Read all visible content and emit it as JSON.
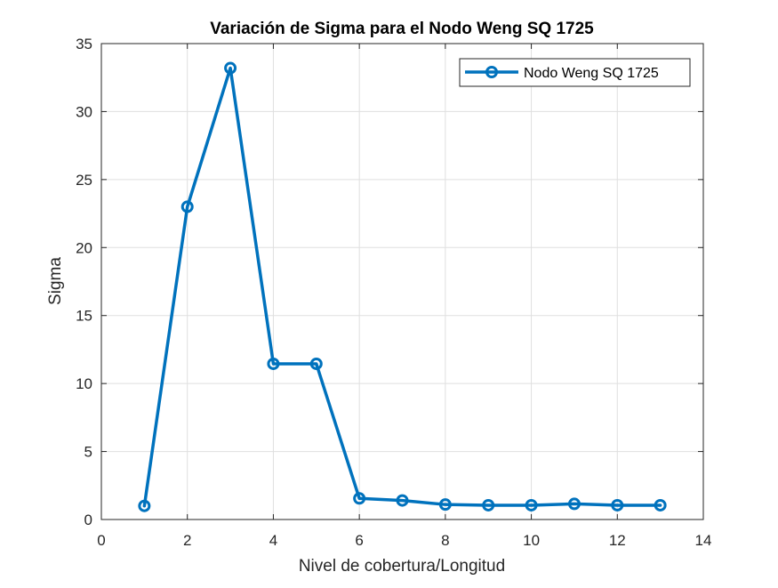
{
  "chart_data": {
    "type": "line",
    "title": "Variación de Sigma para el Nodo Weng SQ 1725",
    "xlabel": "Nivel de cobertura/Longitud",
    "ylabel": "Sigma",
    "xlim": [
      0,
      14
    ],
    "ylim": [
      0,
      35
    ],
    "xticks": [
      0,
      2,
      4,
      6,
      8,
      10,
      12,
      14
    ],
    "yticks": [
      0,
      5,
      10,
      15,
      20,
      25,
      30,
      35
    ],
    "grid": true,
    "legend_position": "top-right",
    "series": [
      {
        "name": "Nodo Weng SQ 1725",
        "color": "#0072BD",
        "marker": "circle",
        "x": [
          1,
          2,
          3,
          4,
          5,
          6,
          7,
          8,
          9,
          10,
          11,
          12,
          13
        ],
        "y": [
          1.0,
          23.0,
          33.2,
          11.45,
          11.45,
          1.55,
          1.4,
          1.1,
          1.05,
          1.05,
          1.15,
          1.05,
          1.05
        ]
      }
    ]
  }
}
